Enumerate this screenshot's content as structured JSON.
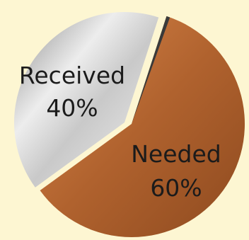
{
  "chart_data": {
    "type": "pie",
    "slices": [
      {
        "name": "Received",
        "value": 40,
        "value_label": "40%",
        "color": "#cfcfcf"
      },
      {
        "name": "Needed",
        "value": 60,
        "value_label": "60%",
        "color": "#b0622e"
      }
    ]
  },
  "colors": {
    "background": "#fdf6d2",
    "received_fill": "#cfcfcf",
    "needed_fill": "#b0622e"
  }
}
